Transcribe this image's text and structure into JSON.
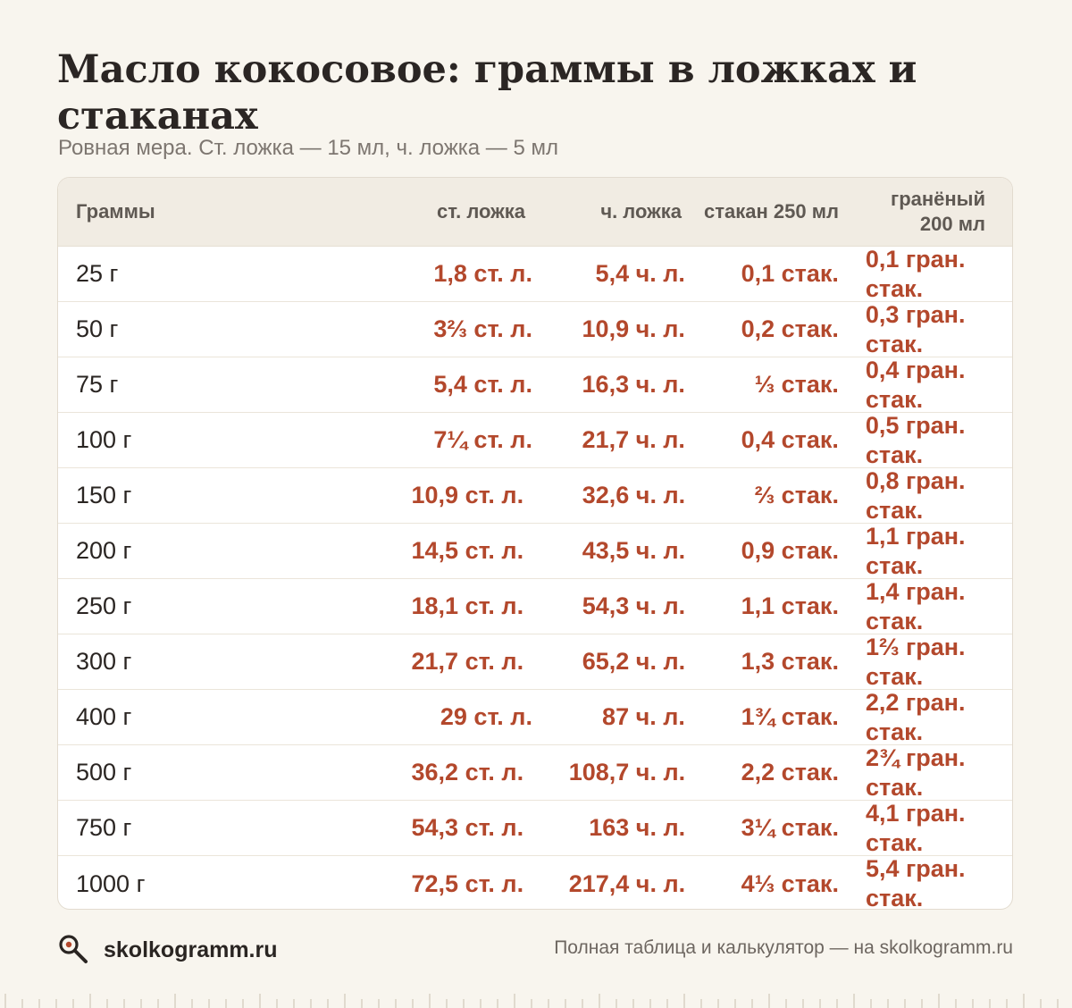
{
  "title": "Масло кокосовое: граммы в ложках и стаканах",
  "subtitle": "Ровная мера. Ст. ложка — 15 мл, ч. ложка — 5 мл",
  "table": {
    "headers": [
      "Граммы",
      "ст. ложка",
      "ч. ложка",
      "стакан 250 мл",
      "гранёный 200 мл"
    ],
    "rows": [
      [
        "25 г",
        "1,8 ст. л.",
        "5,4 ч. л.",
        "0,1 стак.",
        "0,1 гран. стак."
      ],
      [
        "50 г",
        "3⅔ ст. л.",
        "10,9 ч. л.",
        "0,2 стак.",
        "0,3 гран. стак."
      ],
      [
        "75 г",
        "5,4 ст. л.",
        "16,3 ч. л.",
        "⅓ стак.",
        "0,4 гран. стак."
      ],
      [
        "100 г",
        "7¼ ст. л.",
        "21,7 ч. л.",
        "0,4 стак.",
        "0,5 гран. стак."
      ],
      [
        "150 г",
        "10,9 ст. л.",
        "32,6 ч. л.",
        "⅔ стак.",
        "0,8 гран. стак."
      ],
      [
        "200 г",
        "14,5 ст. л.",
        "43,5 ч. л.",
        "0,9 стак.",
        "1,1 гран. стак."
      ],
      [
        "250 г",
        "18,1 ст. л.",
        "54,3 ч. л.",
        "1,1 стак.",
        "1,4 гран. стак."
      ],
      [
        "300 г",
        "21,7 ст. л.",
        "65,2 ч. л.",
        "1,3 стак.",
        "1⅔ гран. стак."
      ],
      [
        "400 г",
        "29 ст. л.",
        "87 ч. л.",
        "1¾ стак.",
        "2,2 гран. стак."
      ],
      [
        "500 г",
        "36,2 ст. л.",
        "108,7 ч. л.",
        "2,2 стак.",
        "2¾ гран. стак."
      ],
      [
        "750 г",
        "54,3 ст. л.",
        "163 ч. л.",
        "3¼ стак.",
        "4,1 гран. стак."
      ],
      [
        "1000 г",
        "72,5 ст. л.",
        "217,4 ч. л.",
        "4⅓ стак.",
        "5,4 гран. стак."
      ]
    ]
  },
  "footer": {
    "brand": "skolkogramm.ru",
    "note": "Полная таблица и калькулятор — на skolkogramm.ru",
    "icon": "magnifier-icon"
  },
  "colors": {
    "background": "#f8f5ee",
    "accent": "#b3482c",
    "header_bg": "#f1ece3"
  }
}
